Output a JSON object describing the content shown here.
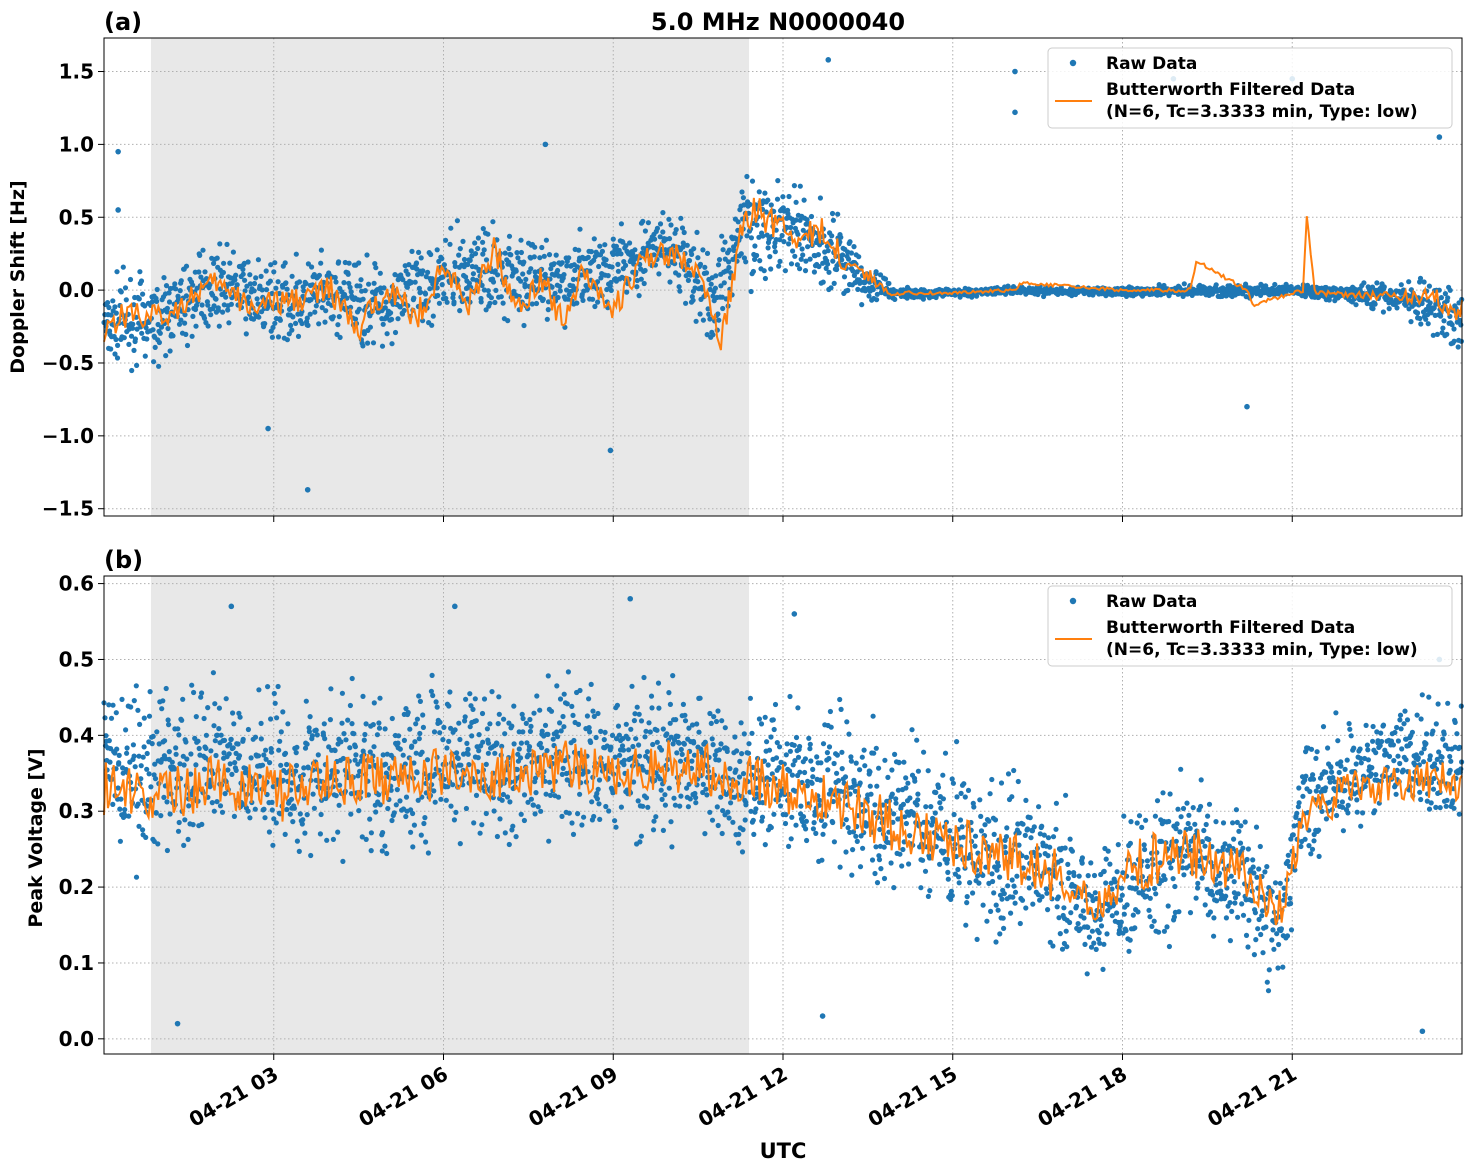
{
  "figure": {
    "title": "5.0 MHz N0000040",
    "xlabel": "UTC",
    "x_tick_labels": [
      "04-21 03",
      "04-21 06",
      "04-21 09",
      "04-21 12",
      "04-21 15",
      "04-21 18",
      "04-21 21"
    ],
    "night_shading": {
      "start_hour": 0.83,
      "end_hour": 11.4,
      "color": "#e8e8e8"
    },
    "colors": {
      "raw": "#1f77b4",
      "filtered": "#ff7f0e"
    }
  },
  "chart_data": [
    {
      "type": "scatter",
      "panel_label": "(a)",
      "ylabel": "Doppler Shift [Hz]",
      "xlim_hours": [
        0,
        24
      ],
      "ylim": [
        -1.55,
        1.73
      ],
      "y_ticks": [
        "1.5",
        "1.0",
        "0.5",
        "0.0",
        "−0.5",
        "−1.0",
        "−1.5"
      ],
      "y_tick_values": [
        1.5,
        1.0,
        0.5,
        0.0,
        -0.5,
        -1.0,
        -1.5
      ],
      "grid": true,
      "legend_position": "top-right",
      "series": [
        {
          "name": "Raw Data",
          "style": "points",
          "envelope": {
            "hours": [
              0,
              1,
              2,
              3,
              4,
              5,
              6,
              7,
              8,
              9,
              10,
              10.8,
              11.2,
              11.5,
              12,
              12.5,
              13,
              13.5,
              14,
              15,
              16,
              17,
              18,
              19,
              20,
              21,
              22,
              23,
              24
            ],
            "center": [
              -0.2,
              -0.2,
              0.05,
              -0.1,
              -0.05,
              -0.1,
              0.1,
              0.15,
              0.05,
              0.15,
              0.3,
              -0.1,
              0.4,
              0.45,
              0.4,
              0.35,
              0.25,
              0.05,
              -0.02,
              -0.02,
              0.0,
              -0.01,
              -0.01,
              0.0,
              -0.01,
              0.0,
              -0.03,
              -0.05,
              -0.2
            ],
            "spread": [
              0.3,
              0.28,
              0.25,
              0.25,
              0.3,
              0.3,
              0.28,
              0.3,
              0.28,
              0.25,
              0.25,
              0.3,
              0.35,
              0.35,
              0.3,
              0.3,
              0.3,
              0.15,
              0.04,
              0.03,
              0.03,
              0.03,
              0.03,
              0.04,
              0.04,
              0.04,
              0.06,
              0.12,
              0.25
            ]
          },
          "notable_outliers": [
            {
              "x": 0.25,
              "y": 0.95
            },
            {
              "x": 0.25,
              "y": 0.55
            },
            {
              "x": 2.9,
              "y": -0.95
            },
            {
              "x": 3.6,
              "y": -1.37
            },
            {
              "x": 7.8,
              "y": 1.0
            },
            {
              "x": 8.95,
              "y": -1.1
            },
            {
              "x": 12.8,
              "y": 1.58
            },
            {
              "x": 16.1,
              "y": 1.5
            },
            {
              "x": 16.1,
              "y": 1.22
            },
            {
              "x": 18.9,
              "y": 1.45
            },
            {
              "x": 21.0,
              "y": 1.45
            },
            {
              "x": 23.6,
              "y": 1.05
            },
            {
              "x": 20.2,
              "y": -0.8
            }
          ]
        },
        {
          "name": "Butterworth Filtered Data\n(N=6, Tc=3.3333 min, Type: low)",
          "style": "line",
          "hours": [
            0,
            0.5,
            1,
            1.5,
            2,
            2.5,
            3,
            3.5,
            4,
            4.5,
            5,
            5.5,
            6,
            6.5,
            6.9,
            7.3,
            7.7,
            8.1,
            8.5,
            9,
            9.5,
            10,
            10.5,
            10.9,
            11.2,
            11.5,
            11.9,
            12.3,
            12.7,
            13.1,
            13.5,
            13.9,
            15,
            16.1,
            16.2,
            18,
            19.2,
            19.3,
            20.2,
            20.3,
            21.2,
            21.25,
            21.4,
            23.5,
            24
          ],
          "values": [
            -0.25,
            -0.15,
            -0.2,
            -0.05,
            0.05,
            -0.1,
            -0.1,
            -0.05,
            0.0,
            -0.3,
            0.05,
            -0.2,
            0.15,
            -0.1,
            0.3,
            -0.15,
            0.1,
            -0.2,
            0.15,
            -0.15,
            0.2,
            0.25,
            0.15,
            -0.4,
            0.3,
            0.55,
            0.45,
            0.35,
            0.4,
            0.2,
            0.1,
            -0.02,
            -0.02,
            0.0,
            0.05,
            0.0,
            0.0,
            0.2,
            0.0,
            -0.1,
            0.0,
            0.55,
            -0.02,
            -0.05,
            -0.15
          ]
        }
      ]
    },
    {
      "type": "scatter",
      "panel_label": "(b)",
      "ylabel": "Peak Voltage [V]",
      "xlim_hours": [
        0,
        24
      ],
      "ylim": [
        -0.02,
        0.61
      ],
      "y_ticks": [
        "0.6",
        "0.5",
        "0.4",
        "0.3",
        "0.2",
        "0.1",
        "0.0"
      ],
      "y_tick_values": [
        0.6,
        0.5,
        0.4,
        0.3,
        0.2,
        0.1,
        0.0
      ],
      "grid": true,
      "legend_position": "top-right",
      "series": [
        {
          "name": "Raw Data",
          "style": "points",
          "envelope": {
            "hours": [
              0,
              1,
              2,
              3,
              4,
              5,
              6,
              7,
              8,
              9,
              10,
              11,
              12,
              13,
              14,
              15,
              16,
              17,
              17.5,
              18,
              19,
              20,
              20.8,
              21.2,
              22,
              23,
              24
            ],
            "center": [
              0.35,
              0.35,
              0.36,
              0.34,
              0.36,
              0.35,
              0.36,
              0.36,
              0.37,
              0.36,
              0.37,
              0.36,
              0.34,
              0.33,
              0.3,
              0.27,
              0.24,
              0.21,
              0.15,
              0.2,
              0.25,
              0.22,
              0.15,
              0.3,
              0.35,
              0.37,
              0.37
            ],
            "spread": [
              0.1,
              0.1,
              0.1,
              0.11,
              0.1,
              0.11,
              0.1,
              0.1,
              0.1,
              0.1,
              0.1,
              0.1,
              0.1,
              0.1,
              0.1,
              0.1,
              0.1,
              0.1,
              0.07,
              0.1,
              0.1,
              0.1,
              0.08,
              0.08,
              0.07,
              0.07,
              0.08
            ]
          },
          "notable_outliers": [
            {
              "x": 2.25,
              "y": 0.57
            },
            {
              "x": 6.2,
              "y": 0.57
            },
            {
              "x": 9.3,
              "y": 0.58
            },
            {
              "x": 1.3,
              "y": 0.02
            },
            {
              "x": 12.7,
              "y": 0.03
            },
            {
              "x": 23.3,
              "y": 0.01
            },
            {
              "x": 23.6,
              "y": 0.5
            },
            {
              "x": 12.2,
              "y": 0.56
            }
          ]
        },
        {
          "name": "Butterworth Filtered Data\n(N=6, Tc=3.3333 min, Type: low)",
          "style": "line",
          "hours": [
            0,
            1,
            2,
            3,
            4,
            5,
            6,
            7,
            8,
            9,
            10,
            11,
            12,
            13,
            14,
            15,
            16,
            17,
            17.5,
            18,
            19,
            20,
            20.8,
            21.2,
            22,
            23,
            24
          ],
          "values": [
            0.33,
            0.32,
            0.34,
            0.32,
            0.34,
            0.34,
            0.35,
            0.35,
            0.36,
            0.35,
            0.36,
            0.35,
            0.33,
            0.31,
            0.28,
            0.26,
            0.24,
            0.21,
            0.17,
            0.22,
            0.25,
            0.23,
            0.17,
            0.29,
            0.33,
            0.34,
            0.34
          ]
        }
      ]
    }
  ]
}
